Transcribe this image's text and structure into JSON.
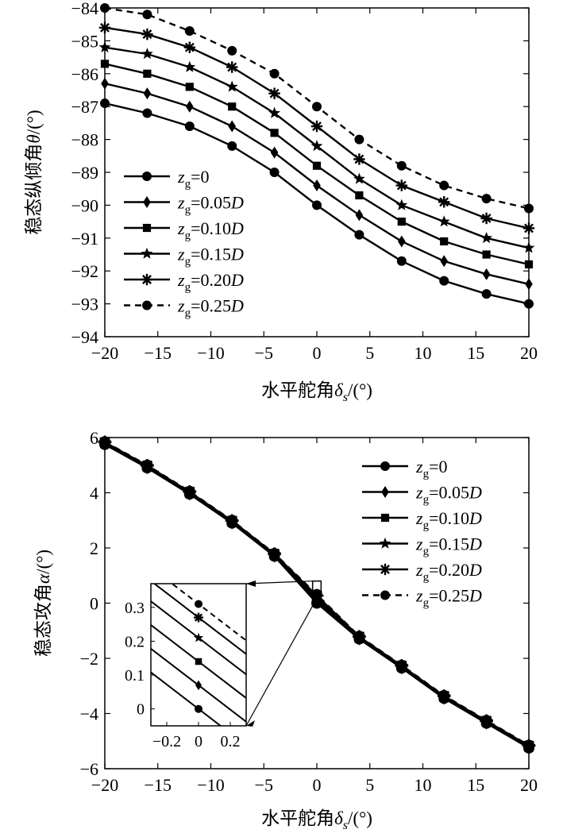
{
  "chart_data": [
    {
      "type": "line",
      "title": "",
      "xlabel": "水平舵角δs/(°)",
      "ylabel": "稳态纵倾角θ/(°)",
      "xlim": [
        -20,
        20
      ],
      "ylim": [
        -94,
        -84
      ],
      "xticks": [
        "−20",
        "−15",
        "−10",
        "−5",
        "0",
        "5",
        "10",
        "15",
        "20"
      ],
      "yticks": [
        "−84",
        "−85",
        "−86",
        "−87",
        "−88",
        "−89",
        "−90",
        "−91",
        "−92",
        "−93",
        "−94"
      ],
      "legend_position": "bottom-left",
      "x": [
        -20,
        -16,
        -12,
        -8,
        -4,
        0,
        4,
        8,
        12,
        16,
        20
      ],
      "series": [
        {
          "name": "zg=0",
          "label_main": "z",
          "label_sub": "g",
          "label_value": "=0",
          "marker": "circle",
          "dash": false,
          "values": [
            -86.9,
            -87.2,
            -87.6,
            -88.2,
            -89.0,
            -90.0,
            -90.9,
            -91.7,
            -92.3,
            -92.7,
            -93.0
          ]
        },
        {
          "name": "zg=0.05D",
          "label_main": "z",
          "label_sub": "g",
          "label_value": "=0.05D",
          "marker": "diamond",
          "dash": false,
          "values": [
            -86.3,
            -86.6,
            -87.0,
            -87.6,
            -88.4,
            -89.4,
            -90.3,
            -91.1,
            -91.7,
            -92.1,
            -92.4
          ]
        },
        {
          "name": "zg=0.10D",
          "label_main": "z",
          "label_sub": "g",
          "label_value": "=0.10D",
          "marker": "square",
          "dash": false,
          "values": [
            -85.7,
            -86.0,
            -86.4,
            -87.0,
            -87.8,
            -88.8,
            -89.7,
            -90.5,
            -91.1,
            -91.5,
            -91.8
          ]
        },
        {
          "name": "zg=0.15D",
          "label_main": "z",
          "label_sub": "g",
          "label_value": "=0.15D",
          "marker": "star",
          "dash": false,
          "values": [
            -85.2,
            -85.4,
            -85.8,
            -86.4,
            -87.2,
            -88.2,
            -89.2,
            -90.0,
            -90.5,
            -91.0,
            -91.3
          ]
        },
        {
          "name": "zg=0.20D",
          "label_main": "z",
          "label_sub": "g",
          "label_value": "=0.20D",
          "marker": "asterisk",
          "dash": false,
          "values": [
            -84.6,
            -84.8,
            -85.2,
            -85.8,
            -86.6,
            -87.6,
            -88.6,
            -89.4,
            -89.9,
            -90.4,
            -90.7
          ]
        },
        {
          "name": "zg=0.25D",
          "label_main": "z",
          "label_sub": "g",
          "label_value": "=0.25D",
          "marker": "circle",
          "dash": true,
          "values": [
            -84.0,
            -84.2,
            -84.7,
            -85.3,
            -86.0,
            -87.0,
            -88.0,
            -88.8,
            -89.4,
            -89.8,
            -90.1
          ]
        }
      ]
    },
    {
      "type": "line",
      "title": "",
      "xlabel": "水平舵角δs/(°)",
      "ylabel": "稳态攻角α/(°)",
      "xlim": [
        -20,
        20
      ],
      "ylim": [
        -6,
        6
      ],
      "xticks": [
        "−20",
        "−15",
        "−10",
        "−5",
        "0",
        "5",
        "10",
        "15",
        "20"
      ],
      "yticks": [
        "6",
        "4",
        "2",
        "0",
        "−2",
        "−4",
        "−6"
      ],
      "legend_position": "top-right",
      "x": [
        -20,
        -16,
        -12,
        -8,
        -4,
        0,
        4,
        8,
        12,
        16,
        20
      ],
      "series": [
        {
          "name": "zg=0",
          "label_main": "z",
          "label_sub": "g",
          "label_value": "=0",
          "marker": "circle",
          "dash": false,
          "values": [
            5.75,
            4.9,
            3.95,
            2.9,
            1.7,
            0.0,
            -1.3,
            -2.35,
            -3.45,
            -4.35,
            -5.25
          ]
        },
        {
          "name": "zg=0.05D",
          "label_main": "z",
          "label_sub": "g",
          "label_value": "=0.05D",
          "marker": "diamond",
          "dash": false,
          "values": [
            5.77,
            4.92,
            3.97,
            2.92,
            1.72,
            0.07,
            -1.28,
            -2.33,
            -3.43,
            -4.33,
            -5.23
          ]
        },
        {
          "name": "zg=0.10D",
          "label_main": "z",
          "label_sub": "g",
          "label_value": "=0.10D",
          "marker": "square",
          "dash": false,
          "values": [
            5.79,
            4.94,
            3.99,
            2.94,
            1.74,
            0.14,
            -1.26,
            -2.31,
            -3.41,
            -4.31,
            -5.21
          ]
        },
        {
          "name": "zg=0.15D",
          "label_main": "z",
          "label_sub": "g",
          "label_value": "=0.15D",
          "marker": "star",
          "dash": false,
          "values": [
            5.81,
            4.96,
            4.01,
            2.96,
            1.76,
            0.21,
            -1.24,
            -2.29,
            -3.39,
            -4.29,
            -5.19
          ]
        },
        {
          "name": "zg=0.20D",
          "label_main": "z",
          "label_sub": "g",
          "label_value": "=0.20D",
          "marker": "asterisk",
          "dash": false,
          "values": [
            5.83,
            4.98,
            4.03,
            2.98,
            1.78,
            0.27,
            -1.22,
            -2.27,
            -3.37,
            -4.27,
            -5.17
          ]
        },
        {
          "name": "zg=0.25D",
          "label_main": "z",
          "label_sub": "g",
          "label_value": "=0.25D",
          "marker": "circle",
          "dash": true,
          "values": [
            5.85,
            5.0,
            4.05,
            3.0,
            1.8,
            0.31,
            -1.2,
            -2.25,
            -3.35,
            -4.25,
            -5.15
          ]
        }
      ],
      "inset": {
        "xlim": [
          -0.3,
          0.3
        ],
        "ylim": [
          -0.05,
          0.37
        ],
        "xticks": [
          "−0.2",
          "0",
          "0.2"
        ],
        "yticks": [
          "0.3",
          "0.2",
          "0.1",
          "0"
        ],
        "marker_x": 0,
        "zoom_box": {
          "xlim": [
            -0.4,
            0.4
          ],
          "ylim": [
            -0.1,
            0.8
          ]
        }
      }
    }
  ]
}
